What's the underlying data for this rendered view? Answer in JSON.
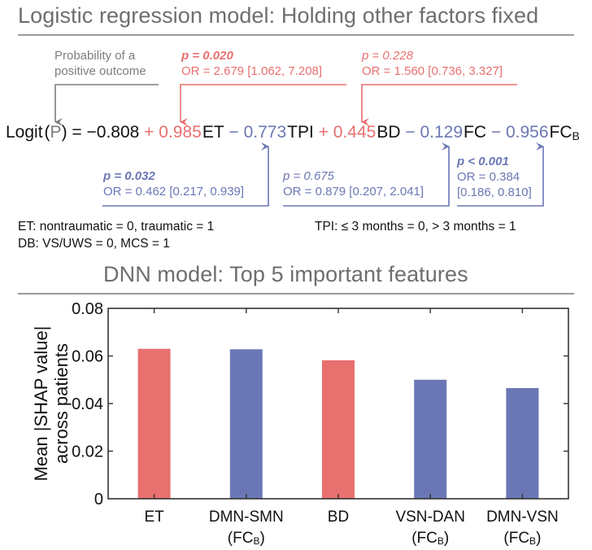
{
  "top": {
    "title": "Logistic regression model: Holding other factors fixed",
    "probability_note": [
      "Probability of a",
      "positive outcome"
    ],
    "equation": {
      "lhs_prefix": "Logit",
      "lhs_open": "(",
      "lhs_var": "P",
      "lhs_close": ")",
      "equals": " = ",
      "intercept": "−0.808",
      "terms": [
        {
          "op": " + ",
          "coef": "0.985",
          "var": "ET",
          "sub": "",
          "color": "#e8706f"
        },
        {
          "op": " − ",
          "coef": "0.773",
          "var": "TPI",
          "sub": "",
          "color": "#6b77b5"
        },
        {
          "op": " + ",
          "coef": "0.445",
          "var": "BD",
          "sub": "",
          "color": "#e8706f"
        },
        {
          "op": " − ",
          "coef": "0.129",
          "var": "FC",
          "sub": "",
          "color": "#6b77b5"
        },
        {
          "op": " − ",
          "coef": "0.956",
          "var": "FC",
          "sub": "B",
          "color": "#6b77b5"
        }
      ]
    },
    "annotations": {
      "et": {
        "p": "p = 0.020",
        "or": "OR = 2.679 [1.062, 7.208]",
        "significant": true
      },
      "bd": {
        "p": "p = 0.228",
        "or": "OR = 1.560 [0.736, 3.327]",
        "significant": false
      },
      "tpi": {
        "p": "p = 0.032",
        "or": "OR = 0.462 [0.217, 0.939]",
        "significant": true
      },
      "fc": {
        "p": "p = 0.675",
        "or": "OR = 0.879 [0.207, 2.041]",
        "significant": false
      },
      "fcb": {
        "p": "p < 0.001",
        "or": "OR = 0.384",
        "ci": "[0.186, 0.810]",
        "significant": true
      }
    },
    "legend": {
      "et": "ET: nontraumatic = 0, traumatic = 1",
      "tpi": "TPI: ≤ 3 months = 0, > 3 months = 1",
      "db": "DB: VS/UWS = 0, MCS = 1"
    },
    "colors": {
      "positive": "#e8706f",
      "negative": "#6b77b5",
      "neutral": "#7d7d7d"
    }
  },
  "chart_data": {
    "type": "bar",
    "title": "DNN model: Top 5 important features",
    "ylabel": [
      "Mean |SHAP value|",
      "across patients"
    ],
    "xlabel": "",
    "categories": [
      {
        "line1": "ET",
        "line2": "",
        "sub": ""
      },
      {
        "line1": "DMN-SMN",
        "line2": "(FC",
        "sub": "B"
      },
      {
        "line1": "BD",
        "line2": "",
        "sub": ""
      },
      {
        "line1": "VSN-DAN",
        "line2": "(FC",
        "sub": "B"
      },
      {
        "line1": "DMN-VSN",
        "line2": "(FC",
        "sub": "B"
      }
    ],
    "values": [
      0.063,
      0.0628,
      0.0582,
      0.05,
      0.0465
    ],
    "bar_colors": [
      "#e8706f",
      "#6b77b5",
      "#e8706f",
      "#6b77b5",
      "#6b77b5"
    ],
    "ylim": [
      0,
      0.08
    ],
    "yticks": [
      "0",
      "0.02",
      "0.04",
      "0.06",
      "0.08"
    ],
    "ytick_values": [
      0,
      0.02,
      0.04,
      0.06,
      0.08
    ],
    "grid": false,
    "legend": "none"
  }
}
